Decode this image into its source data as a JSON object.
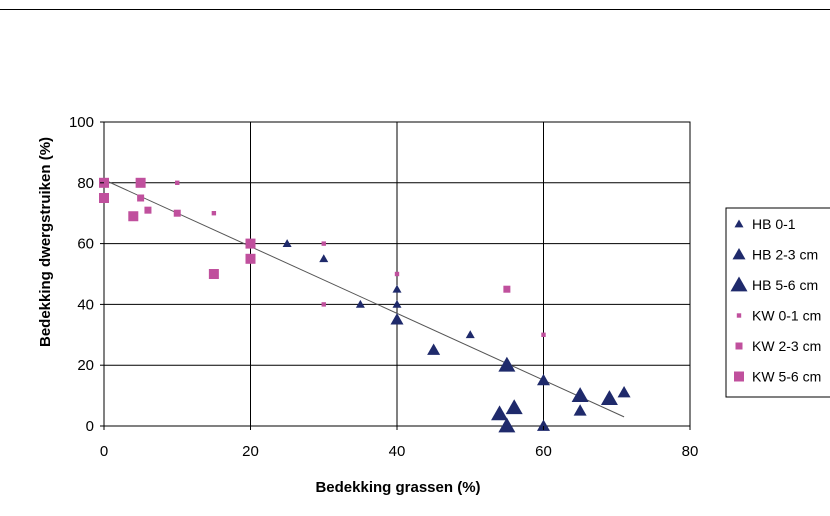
{
  "chart_data": {
    "type": "scatter",
    "xlabel": "Bedekking grassen (%)",
    "ylabel": "Bedekking dwergstruiken (%)",
    "xlim": [
      0,
      80
    ],
    "ylim": [
      0,
      100
    ],
    "xticks": [
      0,
      20,
      40,
      60,
      80
    ],
    "yticks": [
      0,
      20,
      40,
      60,
      80,
      100
    ],
    "grid": true,
    "legend_position": "right",
    "colors": {
      "HB": "#1f2a6b",
      "KW": "#c0509d",
      "grid": "#000000",
      "trendline": "#555555"
    },
    "trendline": {
      "x": [
        0,
        71
      ],
      "y": [
        81,
        3
      ]
    },
    "series": [
      {
        "name": "HB 0-1",
        "marker": "triangle",
        "size": "small",
        "points": [
          [
            25,
            60
          ],
          [
            30,
            55
          ],
          [
            35,
            40
          ],
          [
            40,
            45
          ],
          [
            40,
            40
          ],
          [
            50,
            30
          ]
        ]
      },
      {
        "name": "HB 2-3 cm",
        "marker": "triangle",
        "size": "medium",
        "points": [
          [
            40,
            35
          ],
          [
            45,
            25
          ],
          [
            60,
            15
          ],
          [
            60,
            0
          ],
          [
            65,
            5
          ],
          [
            71,
            11
          ]
        ]
      },
      {
        "name": "HB 5-6 cm",
        "marker": "triangle",
        "size": "large",
        "points": [
          [
            54,
            4
          ],
          [
            55,
            20
          ],
          [
            55,
            0
          ],
          [
            56,
            6
          ],
          [
            65,
            10
          ],
          [
            69,
            9
          ]
        ]
      },
      {
        "name": "KW 0-1 cm",
        "marker": "square",
        "size": "small",
        "points": [
          [
            10,
            80
          ],
          [
            15,
            70
          ],
          [
            30,
            60
          ],
          [
            30,
            40
          ],
          [
            40,
            50
          ],
          [
            60,
            30
          ]
        ]
      },
      {
        "name": "KW 2-3 cm",
        "marker": "square",
        "size": "medium",
        "points": [
          [
            5,
            75
          ],
          [
            6,
            71
          ],
          [
            10,
            70
          ],
          [
            55,
            45
          ]
        ]
      },
      {
        "name": "KW 5-6 cm",
        "marker": "square",
        "size": "large",
        "points": [
          [
            0,
            80
          ],
          [
            0,
            75
          ],
          [
            4,
            69
          ],
          [
            5,
            80
          ],
          [
            15,
            50
          ],
          [
            20,
            60
          ],
          [
            20,
            55
          ]
        ]
      }
    ]
  }
}
